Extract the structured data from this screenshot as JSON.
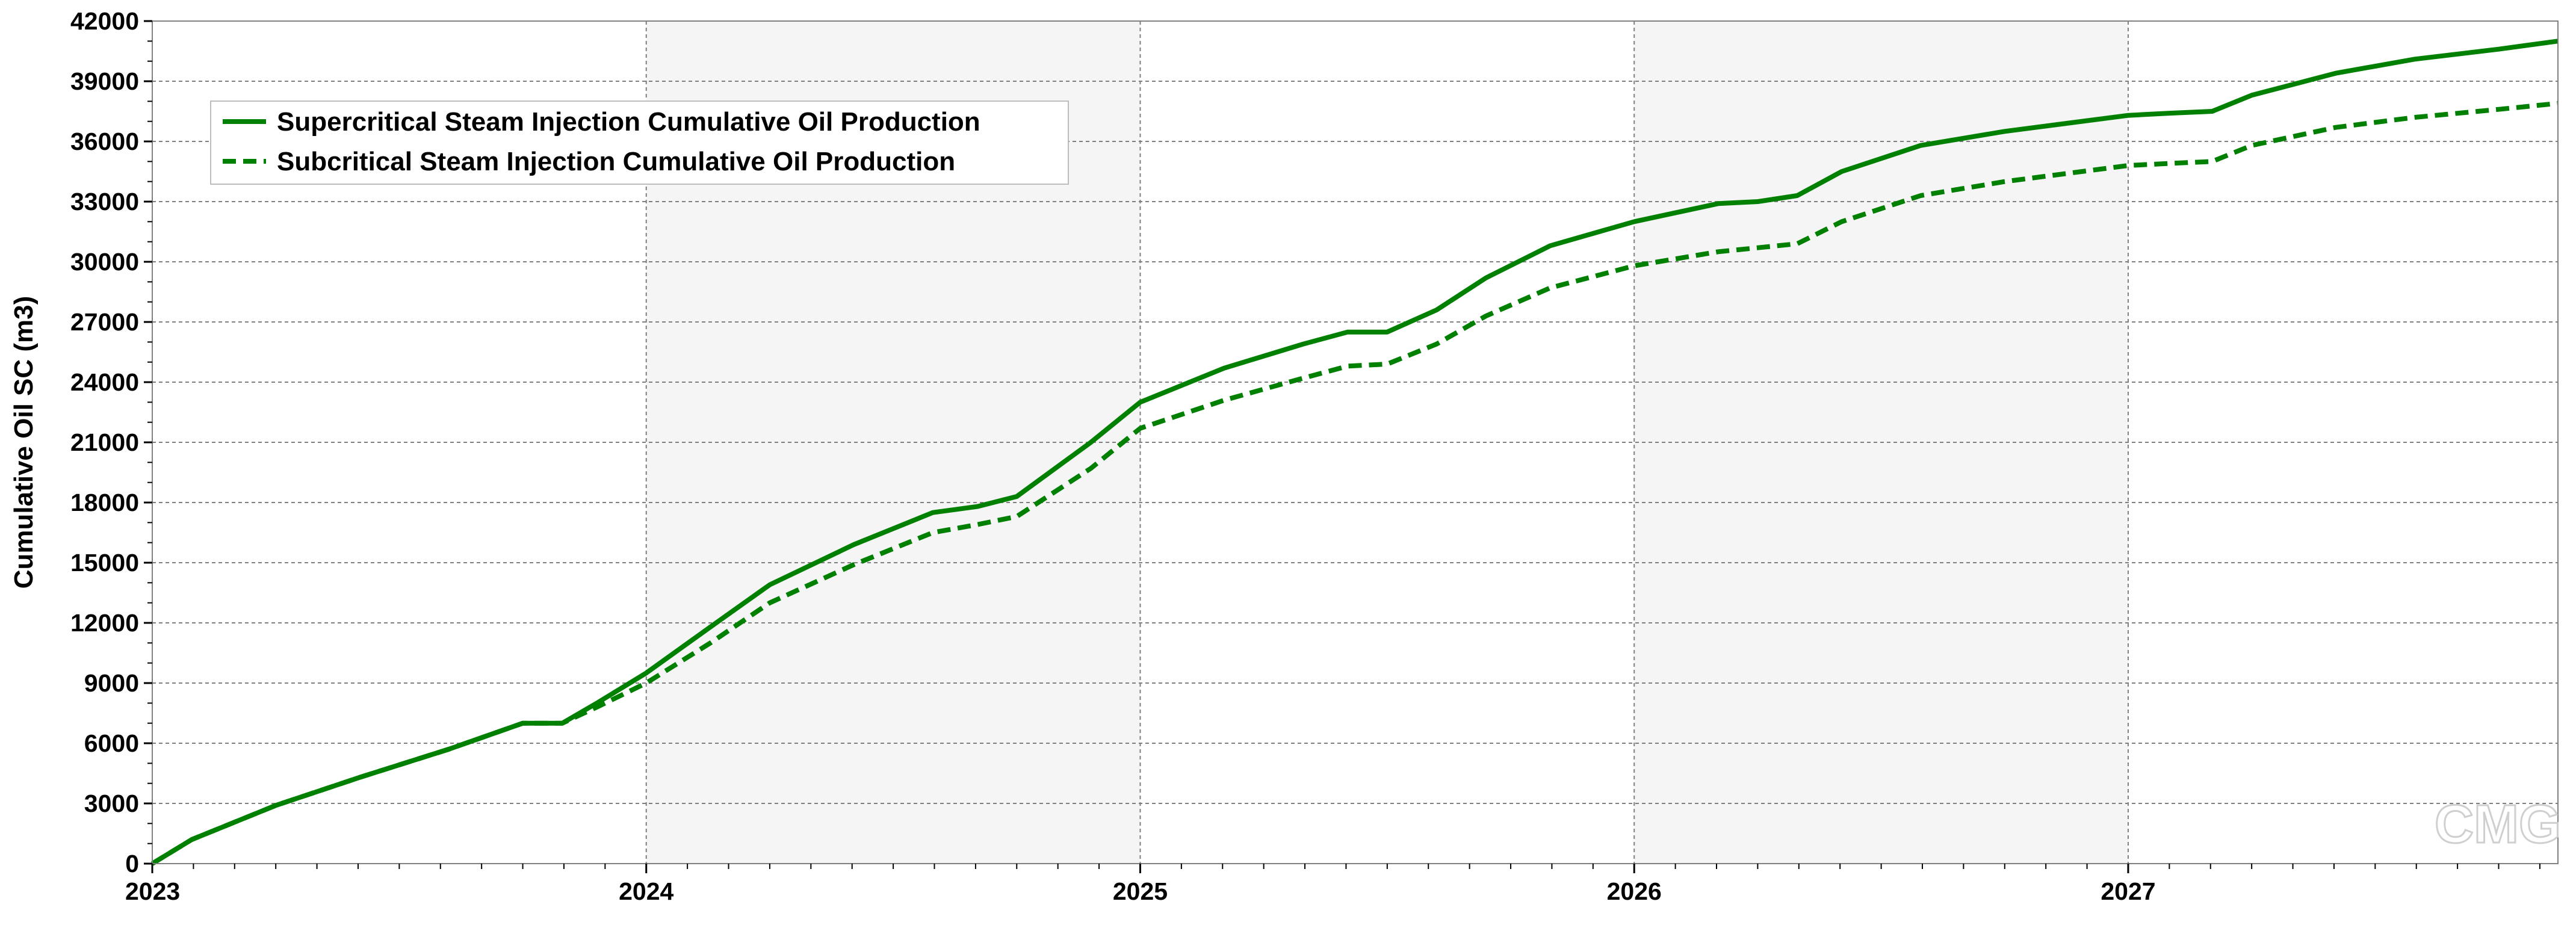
{
  "chart_data": {
    "type": "line",
    "title": "",
    "xlabel": "",
    "ylabel": "Cumulative Oil SC (m3)",
    "xlim": [
      2023.0,
      2027.87
    ],
    "ylim": [
      0,
      42000
    ],
    "x_ticks": [
      2023,
      2024,
      2025,
      2026,
      2027
    ],
    "x_tick_labels": [
      "2023",
      "2024",
      "2025",
      "2026",
      "2027"
    ],
    "y_ticks": [
      0,
      3000,
      6000,
      9000,
      12000,
      15000,
      18000,
      21000,
      24000,
      27000,
      30000,
      33000,
      36000,
      39000,
      42000
    ],
    "y_tick_labels": [
      "0",
      "3000",
      "6000",
      "9000",
      "12000",
      "15000",
      "18000",
      "21000",
      "24000",
      "27000",
      "30000",
      "33000",
      "36000",
      "39000",
      "42000"
    ],
    "grid": true,
    "legend_position": "top-left",
    "watermark": "CMG",
    "series": [
      {
        "name": "Supercritical Steam Injection Cumulative Oil Production",
        "style": "solid",
        "color": "#008000",
        "x": [
          2023.0,
          2023.08,
          2023.25,
          2023.42,
          2023.6,
          2023.75,
          2023.83,
          2023.9,
          2024.0,
          2024.13,
          2024.25,
          2024.42,
          2024.58,
          2024.67,
          2024.75,
          2024.9,
          2025.0,
          2025.17,
          2025.33,
          2025.42,
          2025.5,
          2025.6,
          2025.7,
          2025.83,
          2026.0,
          2026.17,
          2026.25,
          2026.33,
          2026.42,
          2026.58,
          2026.75,
          2027.0,
          2027.08,
          2027.17,
          2027.25,
          2027.42,
          2027.58,
          2027.75,
          2027.87
        ],
        "values": [
          0,
          1200,
          2900,
          4300,
          5700,
          7000,
          7000,
          8000,
          9500,
          11800,
          13900,
          15900,
          17500,
          17800,
          18300,
          21000,
          23000,
          24700,
          25900,
          26500,
          26500,
          27600,
          29200,
          30800,
          32000,
          32900,
          33000,
          33300,
          34500,
          35800,
          36500,
          37300,
          37400,
          37500,
          38300,
          39400,
          40100,
          40600,
          41000
        ]
      },
      {
        "name": "Subcritical Steam Injection Cumulative Oil Production",
        "style": "dashed",
        "color": "#008000",
        "x": [
          2023.0,
          2023.08,
          2023.25,
          2023.42,
          2023.6,
          2023.75,
          2023.83,
          2023.9,
          2024.0,
          2024.13,
          2024.25,
          2024.42,
          2024.58,
          2024.67,
          2024.75,
          2024.9,
          2025.0,
          2025.17,
          2025.33,
          2025.42,
          2025.5,
          2025.6,
          2025.7,
          2025.83,
          2026.0,
          2026.17,
          2026.25,
          2026.33,
          2026.42,
          2026.58,
          2026.75,
          2027.0,
          2027.08,
          2027.17,
          2027.25,
          2027.42,
          2027.58,
          2027.75,
          2027.87
        ],
        "values": [
          0,
          1200,
          2900,
          4300,
          5700,
          7000,
          7000,
          7800,
          9000,
          11000,
          13000,
          14900,
          16500,
          16900,
          17300,
          19700,
          21700,
          23100,
          24200,
          24800,
          24900,
          25900,
          27300,
          28700,
          29800,
          30500,
          30700,
          30900,
          32000,
          33300,
          34000,
          34800,
          34900,
          35000,
          35800,
          36700,
          37200,
          37600,
          37900
        ]
      }
    ]
  },
  "colors": {
    "series": "#008000",
    "grid": "#7f7f7f",
    "band": "#f5f5f5",
    "watermark": "#cfcfcf"
  }
}
